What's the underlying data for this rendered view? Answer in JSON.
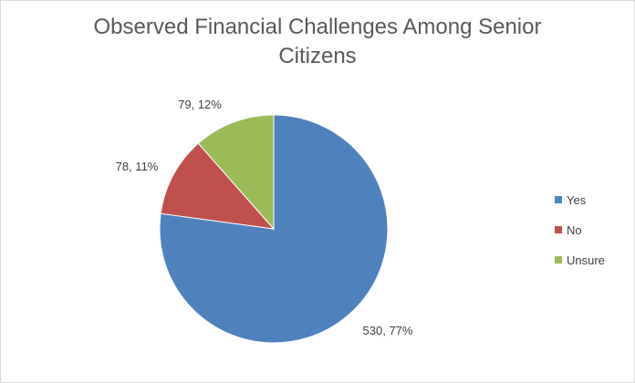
{
  "chart_data": {
    "type": "pie",
    "title_lines": [
      "Observed Financial Challenges Among Senior",
      "Citizens"
    ],
    "slices": [
      {
        "label": "Yes",
        "value": 530,
        "percent": "77%",
        "color": "#4f81bd",
        "data_label": "530, 77%"
      },
      {
        "label": "No",
        "value": 78,
        "percent": "11%",
        "color": "#c0504d",
        "data_label": "78, 11%"
      },
      {
        "label": "Unsure",
        "value": 79,
        "percent": "12%",
        "color": "#9bbb59",
        "data_label": "79, 12%"
      }
    ],
    "legend_position": "right",
    "start_angle": "12 o'clock, clockwise"
  }
}
